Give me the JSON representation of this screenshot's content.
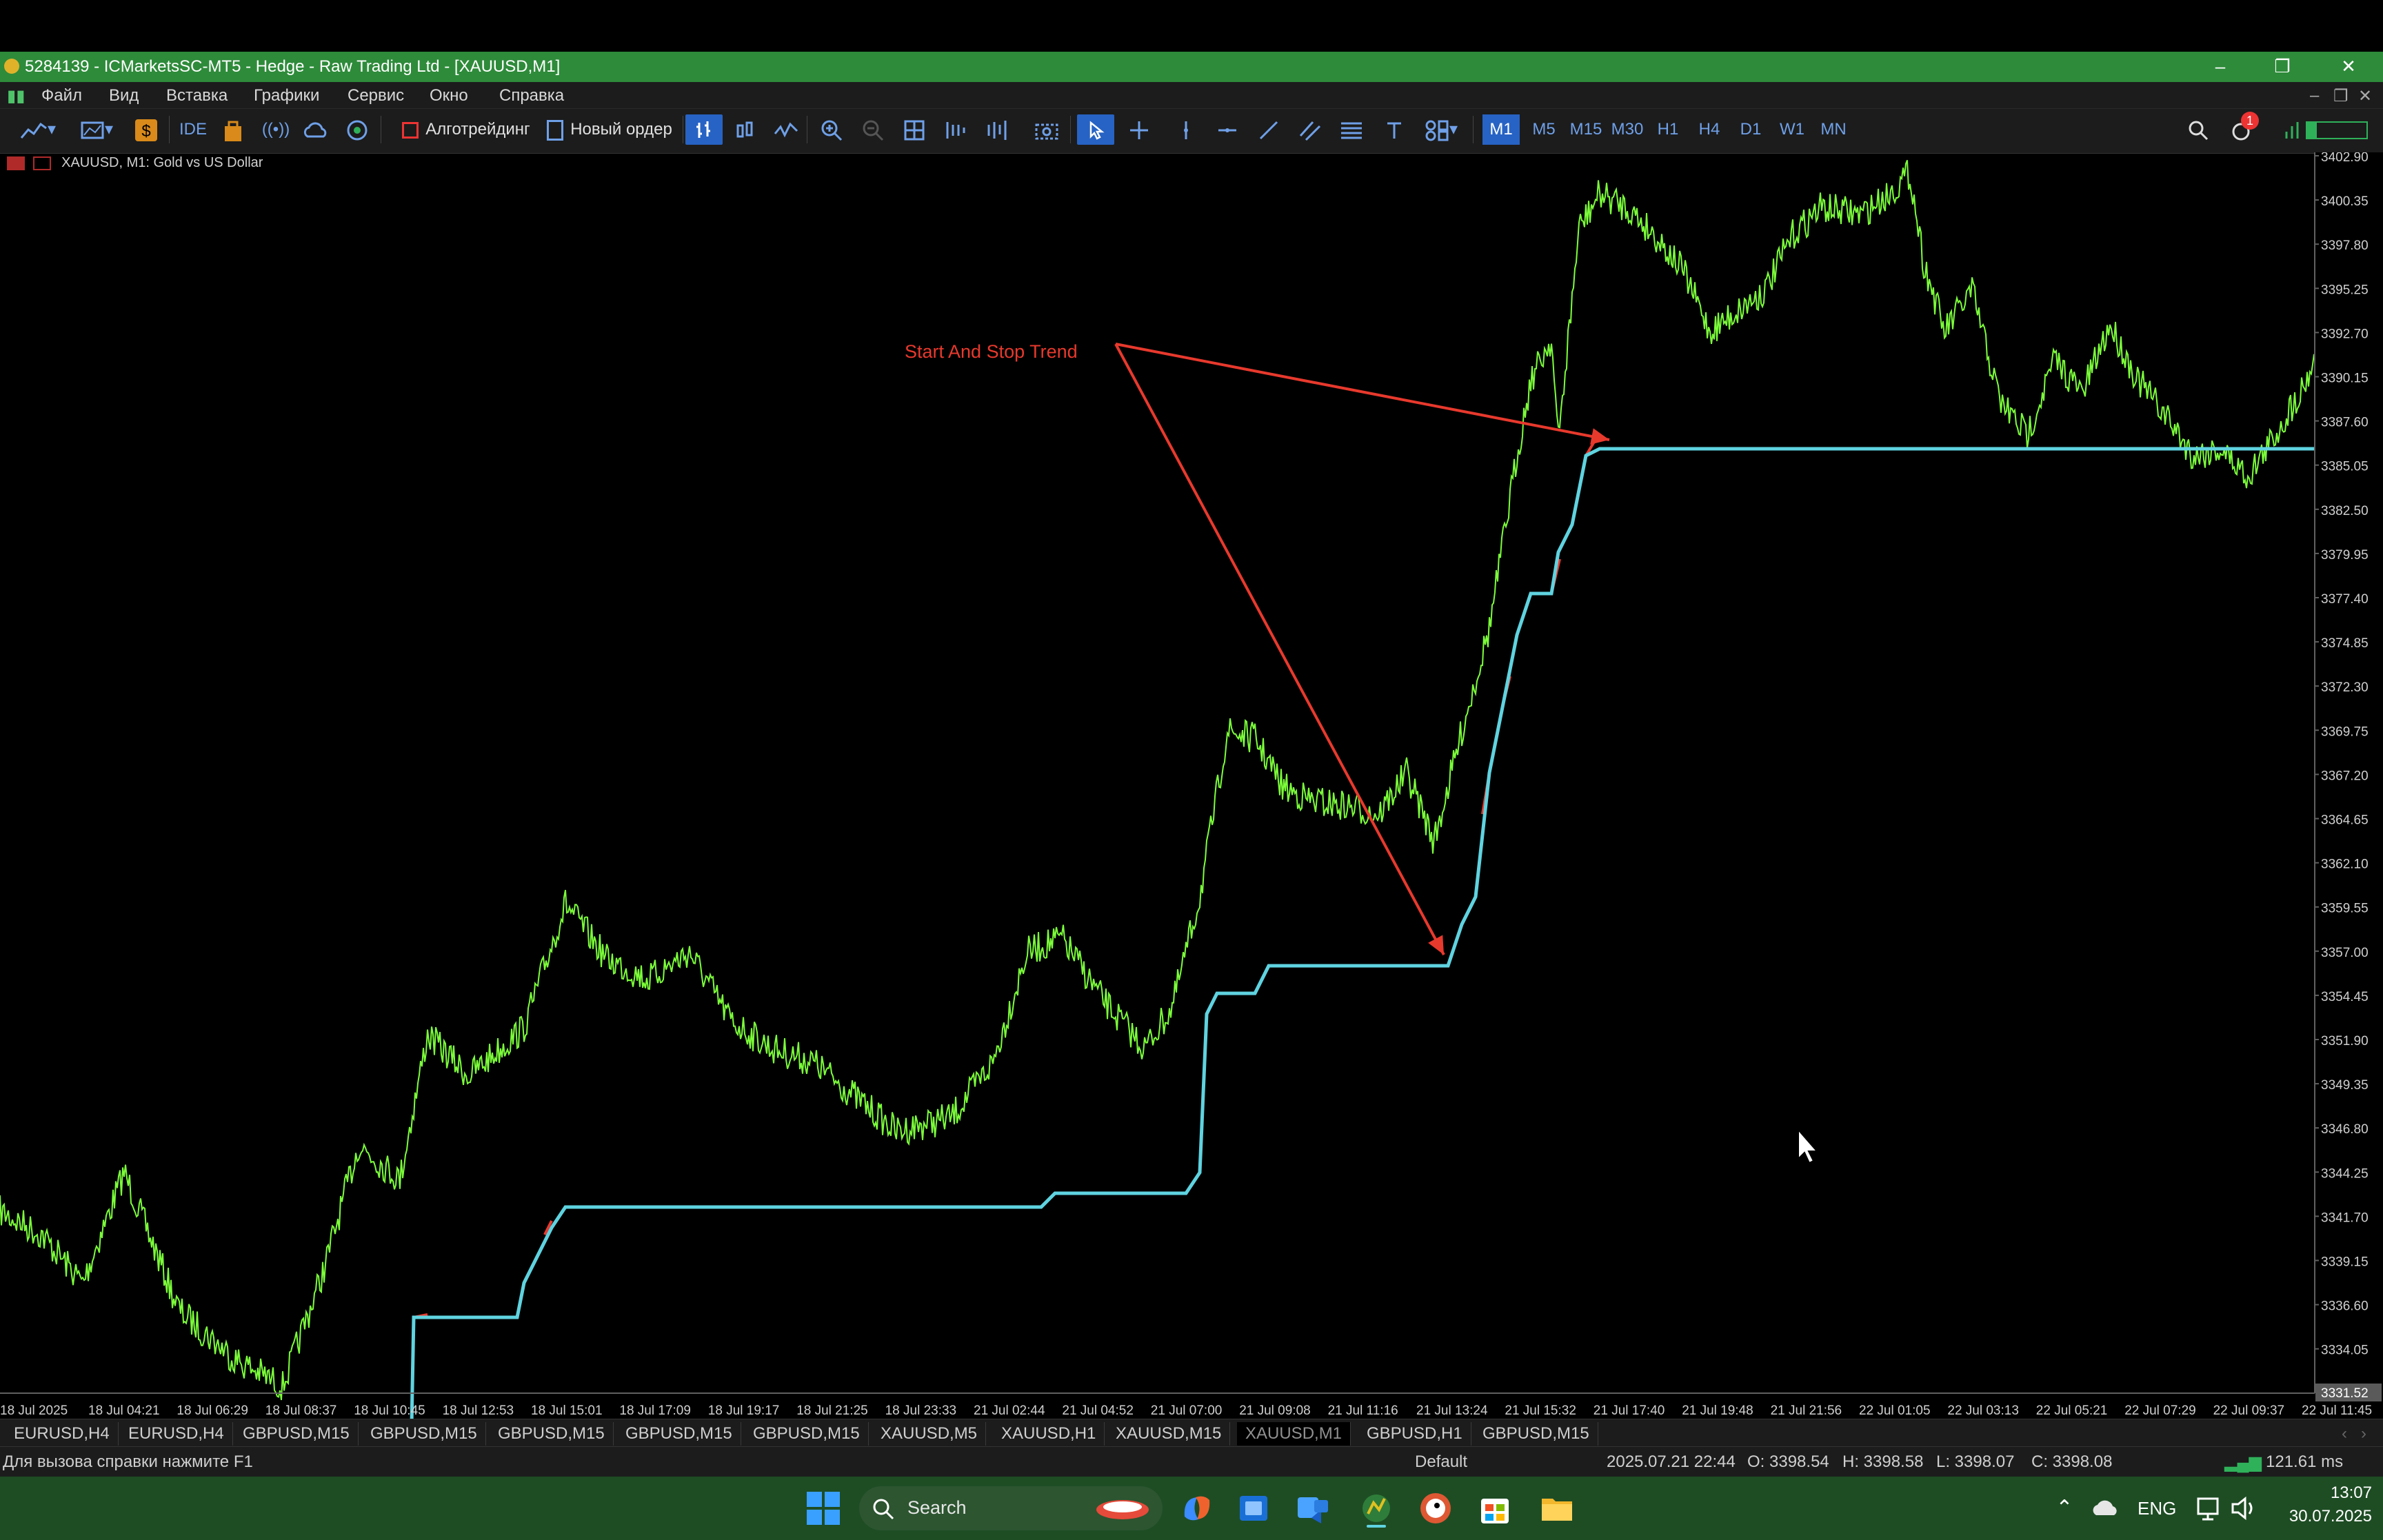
{
  "window": {
    "title": "5284139 - ICMarketsSC-MT5 - Hedge - Raw Trading Ltd - [XAUUSD,M1]"
  },
  "menu": [
    "Файл",
    "Вид",
    "Вставка",
    "Графики",
    "Сервис",
    "Окно",
    "Справка"
  ],
  "toolbar": {
    "ide": "IDE",
    "algo": "Алготрейдинг",
    "new_order": "Новый ордер",
    "timeframes": [
      "M1",
      "M5",
      "M15",
      "M30",
      "H1",
      "H4",
      "D1",
      "W1",
      "MN"
    ],
    "active_timeframe": "M1",
    "notification_count": "1"
  },
  "chart": {
    "label": "XAUUSD, M1:  Gold vs US Dollar",
    "annotation": "Start And Stop Trend",
    "annotation_color": "#e8392d",
    "price_color": "#7cff3a",
    "line_color": "#5fd3e0",
    "price_axis": [
      "3402.90",
      "3400.35",
      "3397.80",
      "3395.25",
      "3392.70",
      "3390.15",
      "3387.60",
      "3385.05",
      "3382.50",
      "3379.95",
      "3377.40",
      "3374.85",
      "3372.30",
      "3369.75",
      "3367.20",
      "3364.65",
      "3362.10",
      "3359.55",
      "3357.00",
      "3354.45",
      "3351.90",
      "3349.35",
      "3346.80",
      "3344.25",
      "3341.70",
      "3339.15",
      "3336.60",
      "3334.05"
    ],
    "current_price": "3331.52",
    "time_axis": [
      "18 Jul 2025",
      "18 Jul 04:21",
      "18 Jul 06:29",
      "18 Jul 08:37",
      "18 Jul 10:45",
      "18 Jul 12:53",
      "18 Jul 15:01",
      "18 Jul 17:09",
      "18 Jul 19:17",
      "18 Jul 21:25",
      "18 Jul 23:33",
      "21 Jul 02:44",
      "21 Jul 04:52",
      "21 Jul 07:00",
      "21 Jul 09:08",
      "21 Jul 11:16",
      "21 Jul 13:24",
      "21 Jul 15:32",
      "21 Jul 17:40",
      "21 Jul 19:48",
      "21 Jul 21:56",
      "22 Jul 01:05",
      "22 Jul 03:13",
      "22 Jul 05:21",
      "22 Jul 07:29",
      "22 Jul 09:37",
      "22 Jul 11:45"
    ]
  },
  "chart_tabs": [
    "EURUSD,H4",
    "EURUSD,H4",
    "GBPUSD,M15",
    "GBPUSD,M15",
    "GBPUSD,M15",
    "GBPUSD,M15",
    "GBPUSD,M15",
    "XAUUSD,M5",
    "XAUUSD,H1",
    "XAUUSD,M15",
    "XAUUSD,M1",
    "GBPUSD,H1",
    "GBPUSD,M15"
  ],
  "active_chart_tab": "XAUUSD,M1",
  "status": {
    "help": "Для вызова справки нажмите F1",
    "profile": "Default",
    "datetime": "2025.07.21 22:44",
    "open": "O: 3398.54",
    "high": "H: 3398.58",
    "low": "L: 3398.07",
    "close": "C: 3398.08",
    "ping": "121.61 ms"
  },
  "taskbar": {
    "search_label": "Search",
    "language": "ENG",
    "time": "13:07",
    "date": "30.07.2025",
    "icons": [
      "start-icon",
      "copilot-icon",
      "outlook-icon",
      "teams-icon",
      "metatrader-icon",
      "duckduckgo-icon",
      "store-icon",
      "explorer-icon"
    ]
  }
}
